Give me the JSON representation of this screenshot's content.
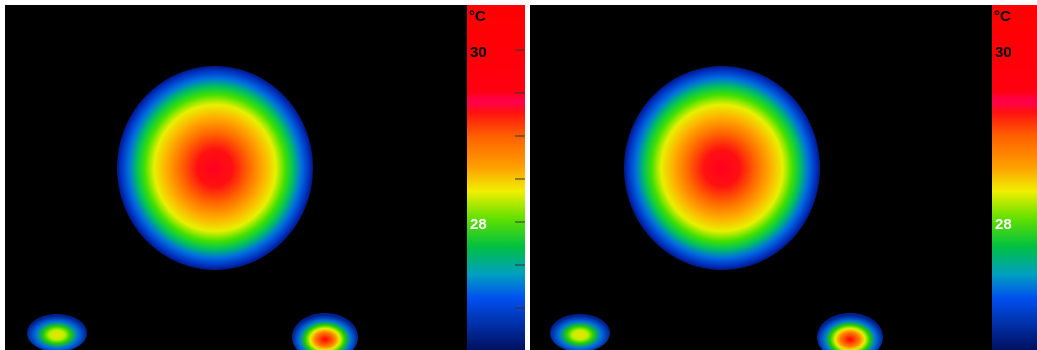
{
  "panels": [
    {
      "unit": "°C",
      "scale_labels": [
        "30",
        "28"
      ]
    },
    {
      "unit": "°C",
      "scale_labels": [
        "30",
        "28"
      ]
    }
  ]
}
